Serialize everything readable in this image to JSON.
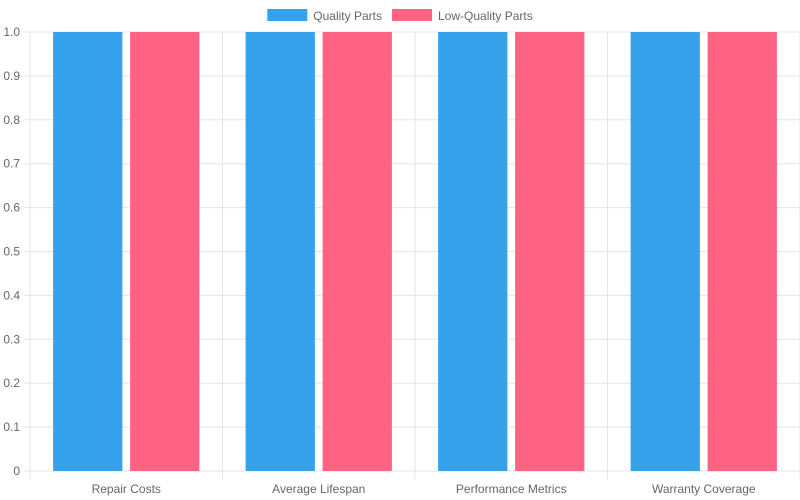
{
  "chart_data": {
    "type": "bar",
    "title": "",
    "xlabel": "",
    "ylabel": "",
    "categories": [
      "Repair Costs",
      "Average Lifespan",
      "Performance Metrics",
      "Warranty Coverage"
    ],
    "series": [
      {
        "name": "Quality Parts",
        "values": [
          1,
          1,
          1,
          1
        ],
        "color": "#36a2eb"
      },
      {
        "name": "Low-Quality Parts",
        "values": [
          1,
          1,
          1,
          1
        ],
        "color": "#ff6384"
      }
    ],
    "ylim": [
      0,
      1
    ],
    "yticks": [
      "0",
      "0.1",
      "0.2",
      "0.3",
      "0.4",
      "0.5",
      "0.6",
      "0.7",
      "0.8",
      "0.9",
      "1.0"
    ],
    "grid": true,
    "legend_position": "top-center"
  }
}
